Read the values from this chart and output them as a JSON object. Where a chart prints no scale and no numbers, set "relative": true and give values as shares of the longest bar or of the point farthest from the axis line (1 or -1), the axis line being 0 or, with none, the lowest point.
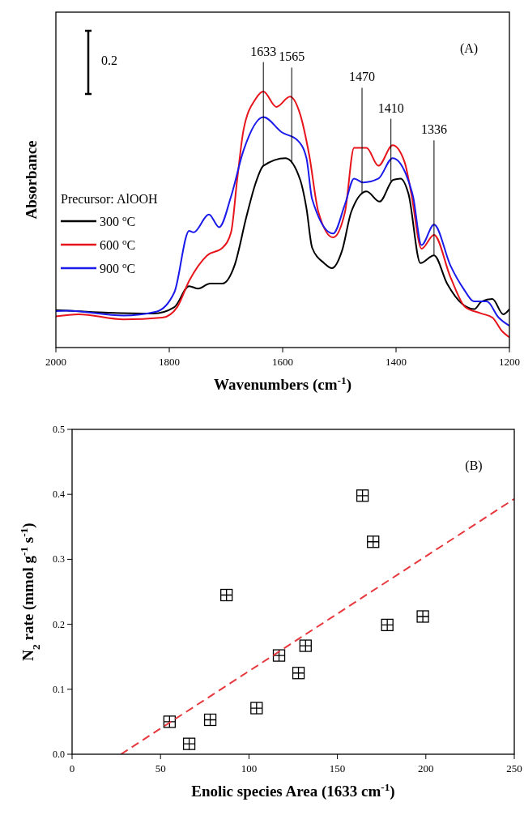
{
  "chart_data": [
    {
      "type": "line",
      "relative": true,
      "xlabel": "Wavenumbers (cm$^{-1}$)",
      "ylabel": "Absorbance",
      "legend_title": "Precursor: AlOOH",
      "legend": "left",
      "xlim": [
        2000,
        1200
      ],
      "xticks": [
        2000,
        1800,
        1600,
        1400,
        1200
      ],
      "line_style": "solid",
      "annotations": [
        "0.2",
        "(A)",
        {
          "text": "1633",
          "x": 1634,
          "y": 0.71
        },
        {
          "text": "1565",
          "x": 1584,
          "y": 0.72
        },
        {
          "text": "1470",
          "x": 1460,
          "y": 0.6
        },
        {
          "text": "1410",
          "x": 1409,
          "y": 0.65
        },
        {
          "text": "1336",
          "x": 1333,
          "y": 0.36
        }
      ],
      "series": [
        {
          "name": "300 $^{o}$C",
          "color": "#000000",
          "x": [
            2000,
            1907,
            1828,
            1791,
            1765,
            1749,
            1728,
            1706,
            1685,
            1664,
            1648,
            1634,
            1595,
            1569,
            1558,
            1548,
            1527,
            1513,
            1495,
            1479,
            1452,
            1429,
            1405,
            1392,
            1378,
            1357,
            1333,
            1310,
            1283,
            1262,
            1249,
            1230,
            1211,
            1200
          ],
          "values": [
            0.146,
            0.136,
            0.133,
            0.158,
            0.24,
            0.23,
            0.25,
            0.25,
            0.32,
            0.51,
            0.64,
            0.71,
            0.74,
            0.655,
            0.544,
            0.39,
            0.33,
            0.31,
            0.38,
            0.53,
            0.61,
            0.57,
            0.655,
            0.66,
            0.6,
            0.33,
            0.36,
            0.25,
            0.17,
            0.15,
            0.18,
            0.19,
            0.13,
            0.15
          ]
        },
        {
          "name": "600 $^{o}$C",
          "color": "#e8141c",
          "x": [
            2000,
            1960,
            1881,
            1812,
            1786,
            1765,
            1733,
            1706,
            1691,
            1680,
            1669,
            1648,
            1634,
            1611,
            1587,
            1569,
            1553,
            1537,
            1511,
            1490,
            1474,
            1452,
            1431,
            1406,
            1385,
            1373,
            1355,
            1333,
            1304,
            1278,
            1251,
            1230,
            1213,
            1200
          ],
          "values": [
            0.122,
            0.13,
            0.11,
            0.117,
            0.158,
            0.26,
            0.36,
            0.39,
            0.45,
            0.66,
            0.85,
            0.97,
            1.0,
            0.94,
            0.98,
            0.91,
            0.75,
            0.53,
            0.43,
            0.53,
            0.78,
            0.78,
            0.71,
            0.79,
            0.725,
            0.6,
            0.386,
            0.44,
            0.275,
            0.158,
            0.134,
            0.117,
            0.064,
            0.04
          ]
        },
        {
          "name": "900 $^{o}$C",
          "color": "#1a1aeb",
          "x": [
            2000,
            1981,
            1881,
            1823,
            1791,
            1765,
            1757,
            1730,
            1712,
            1691,
            1669,
            1634,
            1601,
            1574,
            1558,
            1548,
            1511,
            1490,
            1474,
            1458,
            1431,
            1406,
            1383,
            1370,
            1355,
            1333,
            1304,
            1281,
            1262,
            1240,
            1219,
            1200
          ],
          "values": [
            0.142,
            0.144,
            0.125,
            0.14,
            0.216,
            0.456,
            0.45,
            0.52,
            0.47,
            0.59,
            0.77,
            0.9,
            0.84,
            0.81,
            0.74,
            0.58,
            0.445,
            0.56,
            0.66,
            0.645,
            0.66,
            0.74,
            0.68,
            0.59,
            0.4,
            0.48,
            0.32,
            0.23,
            0.18,
            0.18,
            0.117,
            0.085
          ]
        }
      ]
    },
    {
      "type": "scatter",
      "xlabel": "Enolic species Area (1633 cm$^{-1}$)",
      "ylabel": "N$_{2}$ rate (mmol g$^{-1}$ s$^{-1}$)",
      "xlim": [
        0,
        250
      ],
      "xticks": [
        0,
        50,
        100,
        150,
        200,
        250
      ],
      "ylim": [
        0,
        0.5
      ],
      "yticks": [
        {
          "value": 0,
          "label": "0.0"
        },
        0.1,
        0.2,
        0.3,
        0.4,
        0.5
      ],
      "legend": false,
      "annotations": [
        "(B)"
      ],
      "series": [
        {
          "color": "#000000",
          "marker": "square",
          "x": [
            55.1,
            66.2,
            78.1,
            87.3,
            104.3,
            117,
            128,
            132,
            164.2,
            170.2,
            178.2,
            198.3
          ],
          "values": [
            0.05,
            0.016,
            0.053,
            0.245,
            0.071,
            0.152,
            0.125,
            0.167,
            0.398,
            0.327,
            0.199,
            0.212
          ]
        },
        {
          "type": "line",
          "color": "#e8383d",
          "line_style": "dashed",
          "x": [
            27.6,
            250
          ],
          "values": [
            0,
            0.393
          ]
        }
      ]
    }
  ]
}
